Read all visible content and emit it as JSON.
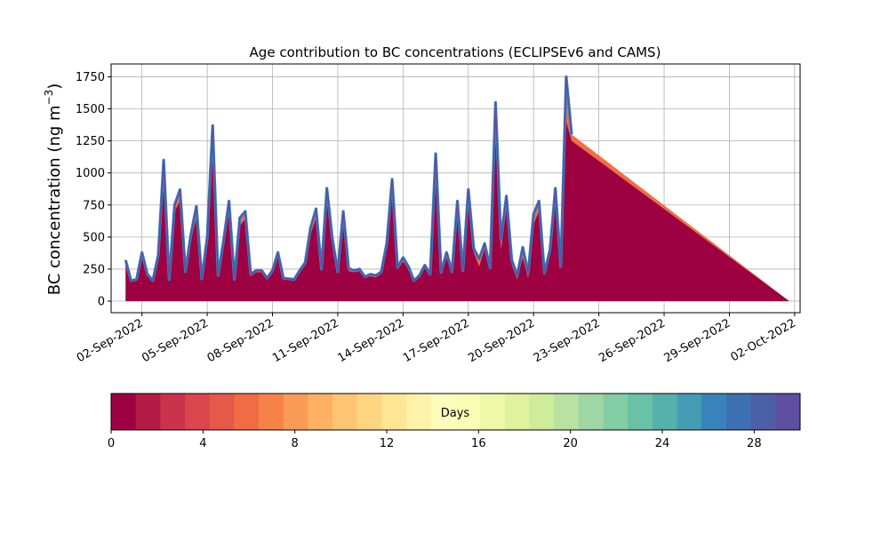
{
  "chart_data": {
    "type": "area",
    "title": "Age contribution to BC concentrations (ECLIPSEv6 and CAMS)",
    "ylabel_main": "BC concentration (ng m",
    "ylabel_sup": "−3",
    "ylabel_close": ")",
    "xlabel": "",
    "ylim": [
      -90,
      1850
    ],
    "xlim": [
      "2022-08-31T14:00",
      "2022-10-02T06:00"
    ],
    "grid": true,
    "yticks": [
      0,
      250,
      500,
      750,
      1000,
      1250,
      1500,
      1750
    ],
    "ytick_labels": [
      "0",
      "250",
      "500",
      "750",
      "1000",
      "1250",
      "1500",
      "1750"
    ],
    "xtick_dates": [
      "2022-09-02",
      "2022-09-05",
      "2022-09-08",
      "2022-09-11",
      "2022-09-14",
      "2022-09-17",
      "2022-09-20",
      "2022-09-23",
      "2022-09-26",
      "2022-09-29",
      "2022-10-02"
    ],
    "xtick_labels": [
      "02-Sep-2022",
      "05-Sep-2022",
      "08-Sep-2022",
      "11-Sep-2022",
      "14-Sep-2022",
      "17-Sep-2022",
      "20-Sep-2022",
      "23-Sep-2022",
      "26-Sep-2022",
      "29-Sep-2022",
      "02-Oct-2022"
    ],
    "series": [
      {
        "x": [
          "2022-09-01T06:00",
          "2022-09-01T12:00",
          "2022-09-01T18:00",
          "2022-09-02T00:00",
          "2022-09-02T06:00",
          "2022-09-02T12:00",
          "2022-09-02T18:00",
          "2022-09-03T00:00",
          "2022-09-03T06:00",
          "2022-09-03T12:00",
          "2022-09-03T18:00",
          "2022-09-04T00:00",
          "2022-09-04T06:00",
          "2022-09-04T12:00",
          "2022-09-04T18:00",
          "2022-09-05T00:00",
          "2022-09-05T06:00",
          "2022-09-05T12:00",
          "2022-09-05T18:00",
          "2022-09-06T00:00",
          "2022-09-06T06:00",
          "2022-09-06T12:00",
          "2022-09-06T18:00",
          "2022-09-07T00:00",
          "2022-09-07T06:00",
          "2022-09-07T12:00",
          "2022-09-07T18:00",
          "2022-09-08T00:00",
          "2022-09-08T06:00",
          "2022-09-08T12:00",
          "2022-09-08T18:00",
          "2022-09-09T00:00",
          "2022-09-09T06:00",
          "2022-09-09T12:00",
          "2022-09-09T18:00",
          "2022-09-10T00:00",
          "2022-09-10T06:00",
          "2022-09-10T12:00",
          "2022-09-10T18:00",
          "2022-09-11T00:00",
          "2022-09-11T06:00",
          "2022-09-11T12:00",
          "2022-09-11T18:00",
          "2022-09-12T00:00",
          "2022-09-12T06:00",
          "2022-09-12T12:00",
          "2022-09-12T18:00",
          "2022-09-13T00:00",
          "2022-09-13T06:00",
          "2022-09-13T12:00",
          "2022-09-13T18:00",
          "2022-09-14T00:00",
          "2022-09-14T06:00",
          "2022-09-14T12:00",
          "2022-09-14T18:00",
          "2022-09-15T00:00",
          "2022-09-15T06:00",
          "2022-09-15T12:00",
          "2022-09-15T18:00",
          "2022-09-16T00:00",
          "2022-09-16T06:00",
          "2022-09-16T12:00",
          "2022-09-16T18:00",
          "2022-09-17T00:00",
          "2022-09-17T06:00",
          "2022-09-17T12:00",
          "2022-09-17T18:00",
          "2022-09-18T00:00",
          "2022-09-18T06:00",
          "2022-09-18T12:00",
          "2022-09-18T18:00",
          "2022-09-19T00:00",
          "2022-09-19T06:00",
          "2022-09-19T12:00",
          "2022-09-19T18:00",
          "2022-09-20T00:00",
          "2022-09-20T06:00",
          "2022-09-20T12:00",
          "2022-09-20T18:00",
          "2022-09-21T00:00",
          "2022-09-21T06:00",
          "2022-09-21T12:00",
          "2022-09-21T18:00",
          "2022-09-22T00:00",
          "2022-09-22T06:00",
          "2022-09-22T12:00",
          "2022-09-22T18:00",
          "2022-09-23T00:00",
          "2022-09-23T06:00",
          "2022-09-23T12:00",
          "2022-09-23T18:00",
          "2022-09-24T00:00",
          "2022-09-24T06:00",
          "2022-09-24T12:00",
          "2022-09-24T18:00",
          "2022-09-25T00:00",
          "2022-09-25T06:00",
          "2022-09-25T12:00",
          "2022-09-25T18:00",
          "2022-09-26T00:00",
          "2022-09-26T06:00",
          "2022-09-26T12:00",
          "2022-09-26T18:00",
          "2022-09-27T00:00",
          "2022-09-27T06:00",
          "2022-09-27T12:00",
          "2022-09-27T18:00",
          "2022-09-28T00:00",
          "2022-09-28T06:00",
          "2022-09-28T12:00",
          "2022-09-28T18:00",
          "2022-09-29T00:00",
          "2022-09-29T06:00",
          "2022-09-29T12:00",
          "2022-09-29T18:00",
          "2022-09-30T00:00",
          "2022-09-30T06:00",
          "2022-09-30T12:00",
          "2022-09-30T18:00",
          "2022-10-01T00:00",
          "2022-10-01T06:00",
          "2022-10-01T12:00",
          "2022-10-01T18:00"
        ],
        "total": [
          320,
          160,
          170,
          380,
          210,
          160,
          360,
          1100,
          170,
          750,
          870,
          230,
          520,
          740,
          175,
          500,
          1370,
          200,
          470,
          780,
          170,
          650,
          700,
          210,
          240,
          240,
          180,
          240,
          380,
          180,
          175,
          170,
          240,
          300,
          570,
          720,
          250,
          880,
          490,
          230,
          700,
          255,
          240,
          250,
          190,
          210,
          200,
          230,
          450,
          950,
          265,
          340,
          270,
          160,
          200,
          280,
          210,
          1150,
          225,
          380,
          230,
          780,
          240,
          870,
          410,
          330,
          450,
          260,
          1550,
          480,
          820,
          320,
          200,
          420,
          220,
          680,
          780,
          220,
          400,
          880,
          270,
          1750,
          1300
        ],
        "young": [
          300,
          150,
          160,
          350,
          195,
          150,
          330,
          900,
          160,
          700,
          780,
          215,
          470,
          650,
          165,
          460,
          1200,
          190,
          430,
          700,
          160,
          590,
          640,
          195,
          225,
          225,
          170,
          225,
          350,
          170,
          165,
          160,
          225,
          280,
          520,
          650,
          230,
          800,
          450,
          215,
          640,
          235,
          225,
          235,
          180,
          195,
          185,
          215,
          410,
          860,
          245,
          310,
          250,
          150,
          185,
          260,
          195,
          1040,
          210,
          350,
          215,
          700,
          225,
          800,
          380,
          270,
          410,
          240,
          1300,
          400,
          720,
          280,
          170,
          340,
          180,
          600,
          700,
          200,
          360,
          800,
          245,
          1400,
          1250
        ]
      }
    ],
    "colorbar": {
      "label": "Days",
      "range": [
        0,
        30
      ],
      "ticks": [
        0,
        4,
        8,
        12,
        16,
        20,
        24,
        28
      ],
      "tick_labels": [
        "0",
        "4",
        "8",
        "12",
        "16",
        "20",
        "24",
        "28"
      ],
      "colors": [
        "#9e0142",
        "#b41c47",
        "#cb334c",
        "#da464c",
        "#e65848",
        "#f16c45",
        "#f78249",
        "#fa9b58",
        "#fdb163",
        "#fdc574",
        "#fed683",
        "#fee695",
        "#fff2aa",
        "#fffcbc",
        "#f9fcb3",
        "#eff8a6",
        "#e1f29c",
        "#cfeb9c",
        "#b8e1a2",
        "#9ed7a4",
        "#84cda4",
        "#6ac2a6",
        "#56b0ac",
        "#459cb3",
        "#3883bc",
        "#3d6fb3",
        "#4c5fa9",
        "#5e4fa2"
      ]
    },
    "colors": {
      "fresh": "#9e0142",
      "aged": "#f46d43",
      "outline_oldest": "#5e4fa2",
      "outline_mid": "#3288bd",
      "grid": "#b0b0b0"
    }
  }
}
